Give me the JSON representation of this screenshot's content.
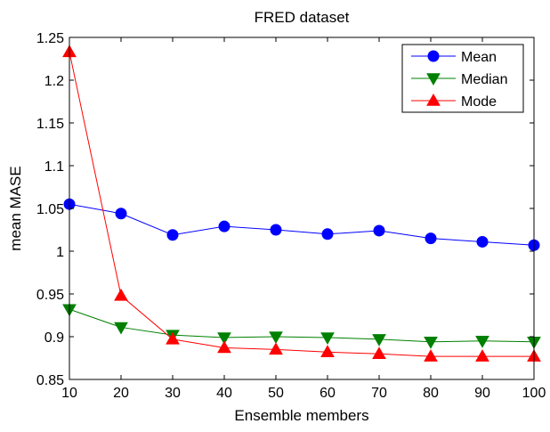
{
  "chart_data": {
    "type": "line",
    "title": "FRED dataset",
    "xlabel": "Ensemble members",
    "ylabel": "mean MASE",
    "x": [
      10,
      20,
      30,
      40,
      50,
      60,
      70,
      80,
      90,
      100
    ],
    "xlim": [
      10,
      100
    ],
    "ylim": [
      0.85,
      1.25
    ],
    "xticks": [
      "10",
      "20",
      "30",
      "40",
      "50",
      "60",
      "70",
      "80",
      "90",
      "100"
    ],
    "yticks": [
      "0.85",
      "0.9",
      "0.95",
      "1",
      "1.05",
      "1.1",
      "1.15",
      "1.2",
      "1.25"
    ],
    "grid": false,
    "legend_position": "top-right",
    "series": [
      {
        "name": "Mean",
        "color": "#0000ff",
        "marker": "circle",
        "values": [
          1.055,
          1.044,
          1.019,
          1.029,
          1.025,
          1.02,
          1.024,
          1.015,
          1.011,
          1.007
        ]
      },
      {
        "name": "Median",
        "color": "#008000",
        "marker": "triangle-down",
        "values": [
          0.932,
          0.911,
          0.902,
          0.899,
          0.9,
          0.899,
          0.897,
          0.894,
          0.895,
          0.894
        ]
      },
      {
        "name": "Mode",
        "color": "#ff0000",
        "marker": "triangle-up",
        "values": [
          1.233,
          0.948,
          0.897,
          0.887,
          0.885,
          0.882,
          0.88,
          0.877,
          0.877,
          0.877
        ]
      }
    ]
  }
}
